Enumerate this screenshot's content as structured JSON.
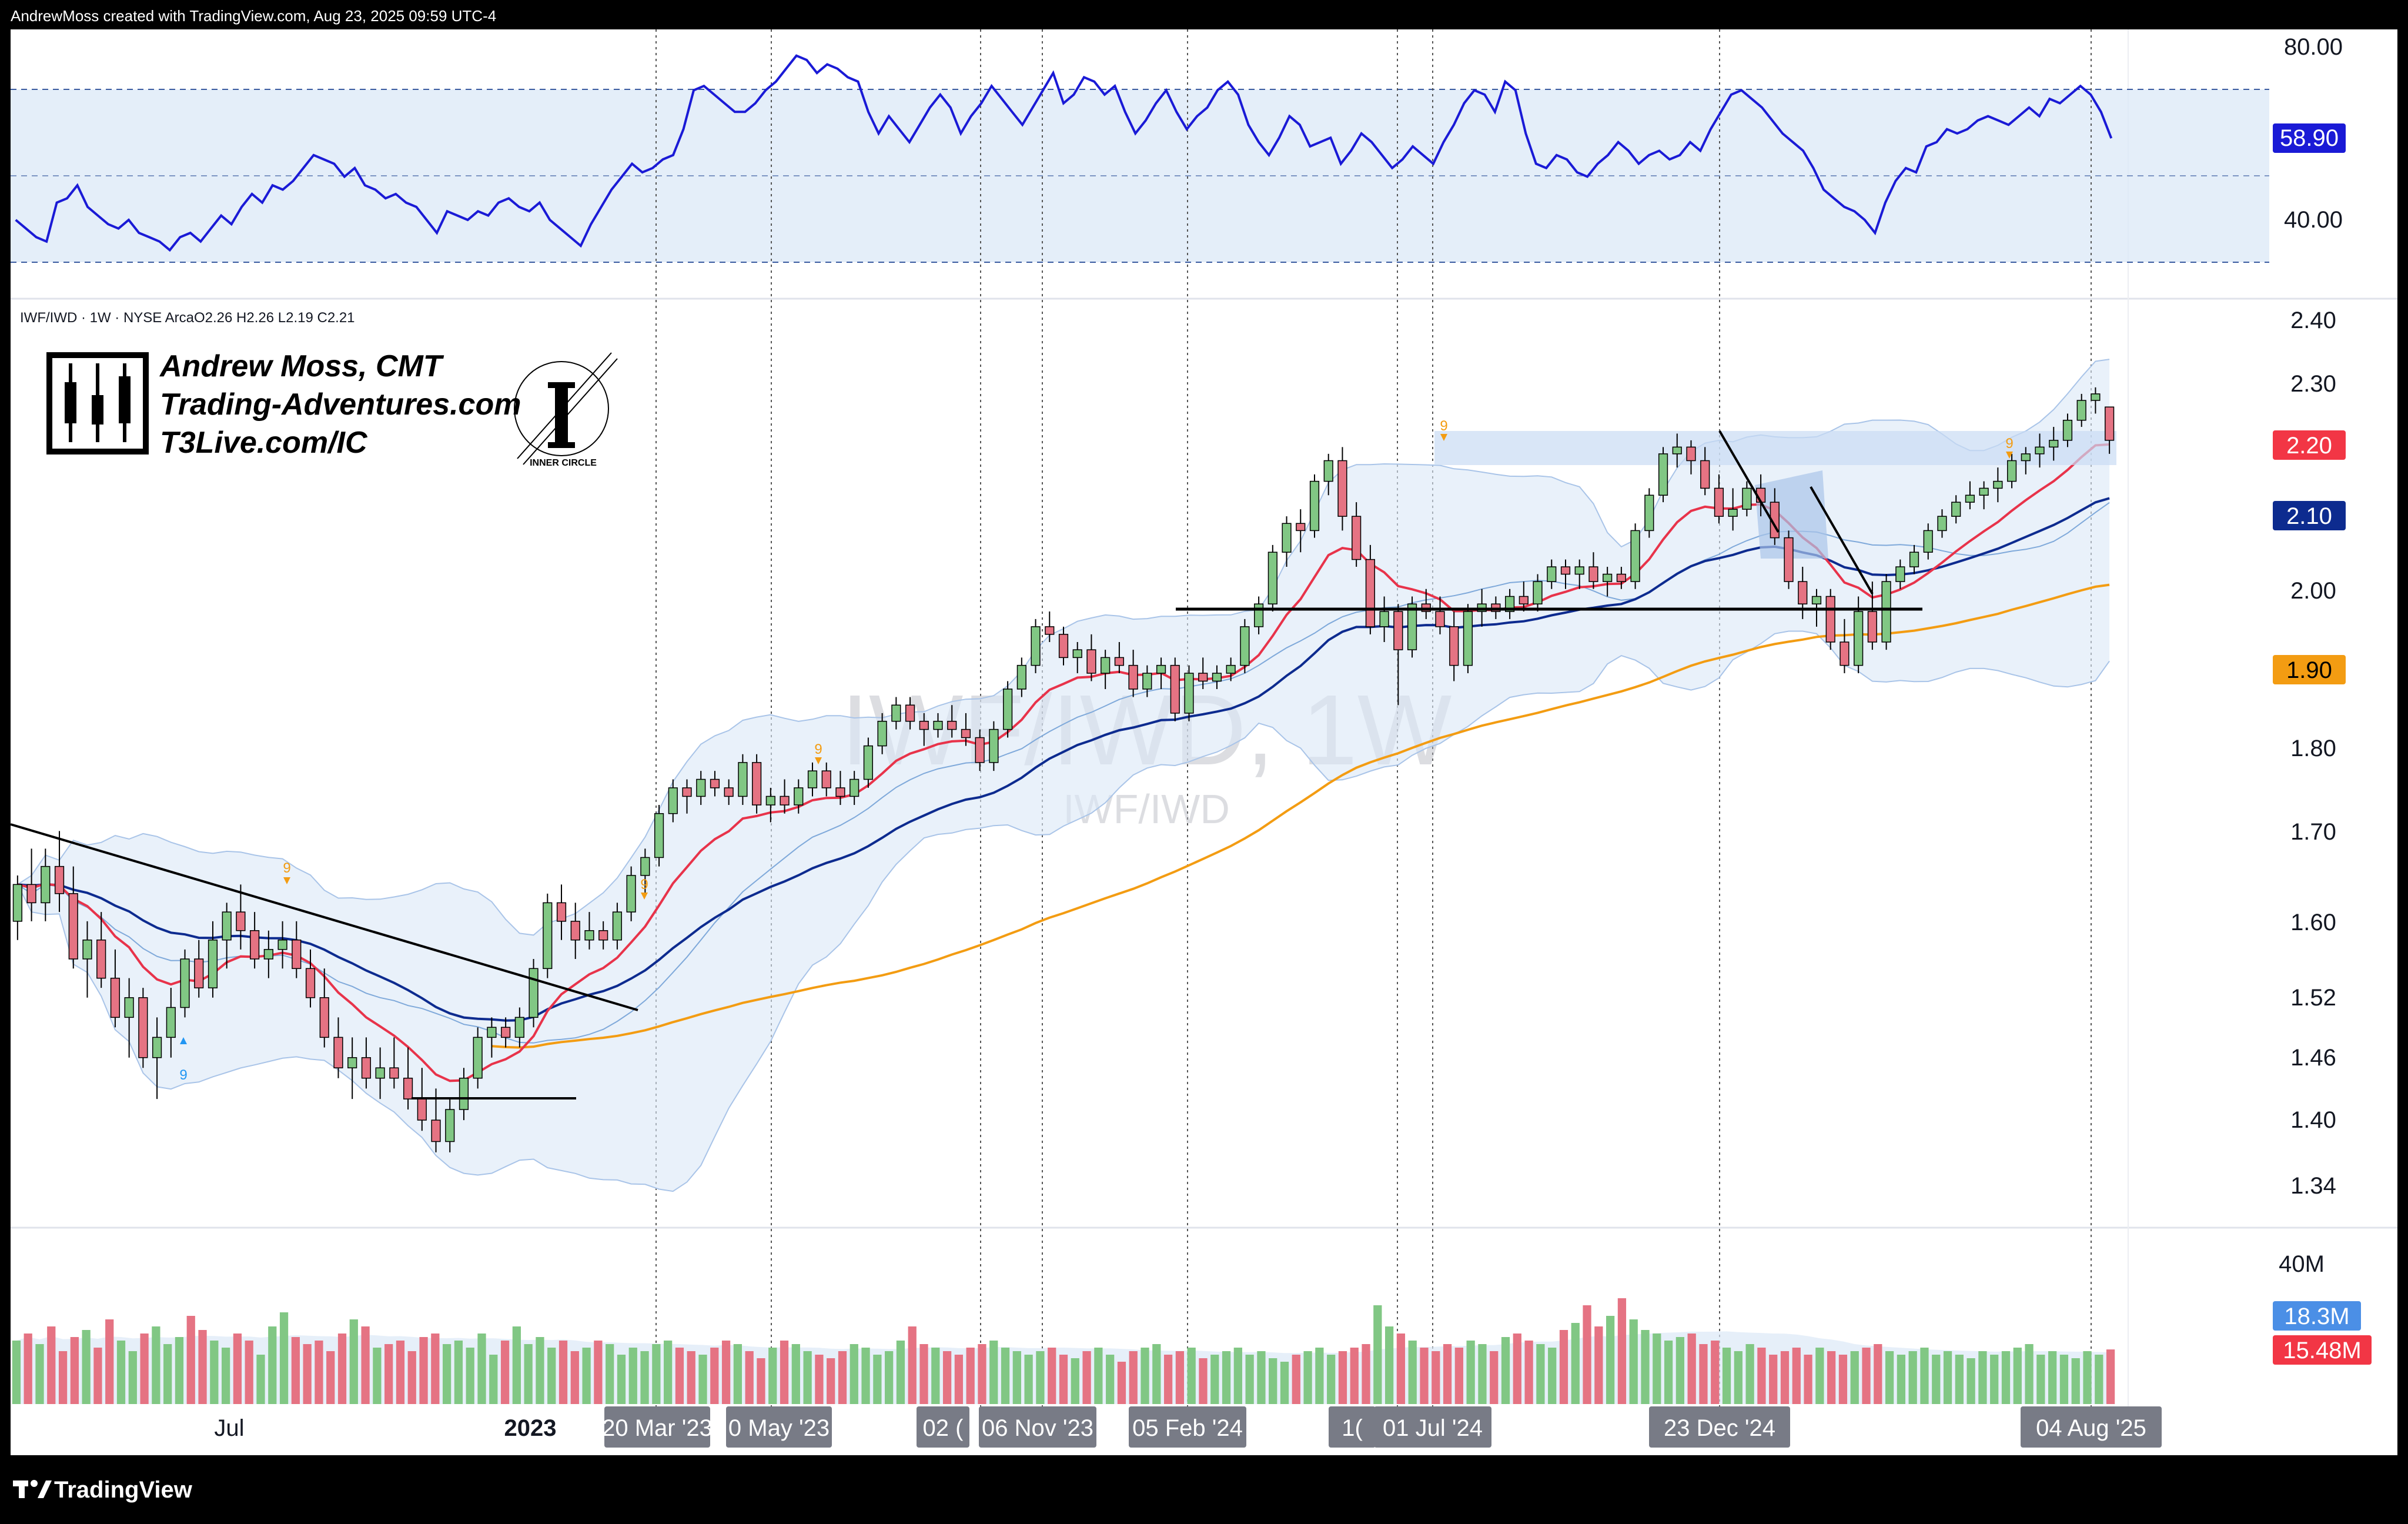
{
  "header": {
    "credit": "AndrewMoss created with TradingView.com, Aug 23, 2025 09:59 UTC-4"
  },
  "footer": {
    "brand": "TradingView"
  },
  "legend": {
    "symbol": "IWF/IWD · 1W · NYSE Arca",
    "ohlc": "O2.26  H2.26  L2.19  C2.21"
  },
  "branding": {
    "line1": "Andrew Moss, CMT",
    "line2": "Trading-Adventures.com",
    "line3": "T3Live.com/IC",
    "badge": "INNER CIRCLE"
  },
  "watermark": {
    "big": "IWF/IWD, 1W",
    "small": "IWF/IWD"
  },
  "colors": {
    "up": "#81c784",
    "down": "#e57383",
    "ema_fast": "#e8334a",
    "ema_mid": "#0d2b8f",
    "ema_slow": "#f39c12",
    "rsi": "#1a1ad6",
    "band": "#dbe8f7",
    "accent_blue": "#4b8fe6"
  },
  "chart_data": [
    {
      "type": "line",
      "name": "RSI",
      "y_axis_ticks": [
        "80.00",
        "40.00"
      ],
      "ylim": [
        28,
        84
      ],
      "levels": [
        70,
        50,
        30
      ],
      "current_label": "58.90",
      "values": [
        40,
        38,
        36,
        35,
        44,
        45,
        48,
        43,
        41,
        39,
        38,
        40,
        37,
        36,
        35,
        33,
        36,
        37,
        35,
        38,
        41,
        39,
        43,
        46,
        44,
        48,
        47,
        49,
        52,
        55,
        54,
        53,
        50,
        52,
        48,
        47,
        45,
        46,
        44,
        43,
        40,
        37,
        42,
        41,
        40,
        42,
        41,
        44,
        45,
        43,
        42,
        44,
        40,
        38,
        36,
        34,
        39,
        43,
        47,
        50,
        53,
        51,
        52,
        54,
        55,
        61,
        70,
        71,
        69,
        67,
        65,
        65,
        67,
        70,
        72,
        75,
        78,
        77,
        74,
        76,
        75,
        73,
        72,
        65,
        60,
        64,
        61,
        58,
        62,
        66,
        69,
        66,
        60,
        64,
        67,
        71,
        68,
        65,
        62,
        66,
        70,
        74,
        67,
        69,
        73,
        72,
        69,
        71,
        65,
        60,
        63,
        67,
        70,
        65,
        61,
        64,
        66,
        70,
        72,
        69,
        62,
        58,
        55,
        59,
        64,
        62,
        57,
        58,
        59,
        53,
        56,
        60,
        58,
        55,
        52,
        54,
        57,
        55,
        53,
        58,
        62,
        67,
        70,
        69,
        65,
        72,
        70,
        60,
        53,
        52,
        55,
        54,
        51,
        50,
        53,
        55,
        58,
        56,
        53,
        55,
        56,
        54,
        55,
        58,
        56,
        61,
        65,
        69,
        70,
        68,
        66,
        63,
        60,
        58,
        56,
        52,
        47,
        45,
        43,
        42,
        40,
        37,
        44,
        49,
        52,
        51,
        57,
        58,
        61,
        60,
        61,
        63,
        64,
        63,
        62,
        64,
        66,
        64,
        68,
        67,
        69,
        71,
        69,
        65,
        58.9
      ]
    },
    {
      "type": "candlestick",
      "name": "IWF/IWD",
      "scale": "log",
      "y_axis_ticks": [
        "2.40",
        "2.30",
        "2.20",
        "2.10",
        "2.00",
        "1.90",
        "1.80",
        "1.70",
        "1.60",
        "1.52",
        "1.46",
        "1.40",
        "1.34"
      ],
      "price_labels": [
        {
          "value": "2.20",
          "color": "#f23645"
        },
        {
          "value": "2.10",
          "color": "#0d2b8f"
        },
        {
          "value": "1.90",
          "color": "#f39c12"
        }
      ],
      "annotations": [
        "9",
        "9",
        "9",
        "9",
        "9",
        "9"
      ],
      "ohlc": [
        [
          1.6,
          1.65,
          1.58,
          1.64
        ],
        [
          1.64,
          1.68,
          1.6,
          1.62
        ],
        [
          1.62,
          1.68,
          1.6,
          1.66
        ],
        [
          1.66,
          1.7,
          1.61,
          1.63
        ],
        [
          1.63,
          1.66,
          1.55,
          1.56
        ],
        [
          1.56,
          1.6,
          1.52,
          1.58
        ],
        [
          1.58,
          1.61,
          1.53,
          1.54
        ],
        [
          1.54,
          1.57,
          1.49,
          1.5
        ],
        [
          1.5,
          1.54,
          1.46,
          1.52
        ],
        [
          1.52,
          1.53,
          1.45,
          1.46
        ],
        [
          1.46,
          1.5,
          1.42,
          1.48
        ],
        [
          1.48,
          1.53,
          1.46,
          1.51
        ],
        [
          1.51,
          1.57,
          1.5,
          1.56
        ],
        [
          1.56,
          1.58,
          1.52,
          1.53
        ],
        [
          1.53,
          1.6,
          1.52,
          1.58
        ],
        [
          1.58,
          1.62,
          1.55,
          1.61
        ],
        [
          1.61,
          1.64,
          1.57,
          1.59
        ],
        [
          1.59,
          1.61,
          1.55,
          1.56
        ],
        [
          1.56,
          1.59,
          1.54,
          1.57
        ],
        [
          1.57,
          1.6,
          1.55,
          1.58
        ],
        [
          1.58,
          1.6,
          1.54,
          1.55
        ],
        [
          1.55,
          1.57,
          1.51,
          1.52
        ],
        [
          1.52,
          1.55,
          1.47,
          1.48
        ],
        [
          1.48,
          1.5,
          1.44,
          1.45
        ],
        [
          1.45,
          1.48,
          1.42,
          1.46
        ],
        [
          1.46,
          1.48,
          1.43,
          1.44
        ],
        [
          1.44,
          1.47,
          1.42,
          1.45
        ],
        [
          1.45,
          1.48,
          1.43,
          1.44
        ],
        [
          1.44,
          1.47,
          1.41,
          1.42
        ],
        [
          1.42,
          1.45,
          1.39,
          1.4
        ],
        [
          1.4,
          1.43,
          1.37,
          1.38
        ],
        [
          1.38,
          1.42,
          1.37,
          1.41
        ],
        [
          1.41,
          1.45,
          1.4,
          1.44
        ],
        [
          1.44,
          1.49,
          1.43,
          1.48
        ],
        [
          1.48,
          1.5,
          1.46,
          1.49
        ],
        [
          1.49,
          1.5,
          1.47,
          1.48
        ],
        [
          1.48,
          1.51,
          1.47,
          1.5
        ],
        [
          1.5,
          1.56,
          1.49,
          1.55
        ],
        [
          1.55,
          1.63,
          1.54,
          1.62
        ],
        [
          1.62,
          1.64,
          1.58,
          1.6
        ],
        [
          1.6,
          1.62,
          1.56,
          1.58
        ],
        [
          1.58,
          1.61,
          1.57,
          1.59
        ],
        [
          1.59,
          1.6,
          1.57,
          1.58
        ],
        [
          1.58,
          1.62,
          1.57,
          1.61
        ],
        [
          1.61,
          1.66,
          1.6,
          1.65
        ],
        [
          1.65,
          1.68,
          1.63,
          1.67
        ],
        [
          1.67,
          1.73,
          1.66,
          1.72
        ],
        [
          1.72,
          1.76,
          1.71,
          1.75
        ],
        [
          1.75,
          1.76,
          1.72,
          1.74
        ],
        [
          1.74,
          1.77,
          1.73,
          1.76
        ],
        [
          1.76,
          1.77,
          1.74,
          1.75
        ],
        [
          1.75,
          1.76,
          1.73,
          1.74
        ],
        [
          1.74,
          1.79,
          1.73,
          1.78
        ],
        [
          1.78,
          1.79,
          1.72,
          1.73
        ],
        [
          1.73,
          1.75,
          1.71,
          1.74
        ],
        [
          1.74,
          1.76,
          1.72,
          1.73
        ],
        [
          1.73,
          1.76,
          1.72,
          1.75
        ],
        [
          1.75,
          1.78,
          1.74,
          1.77
        ],
        [
          1.77,
          1.78,
          1.74,
          1.75
        ],
        [
          1.75,
          1.77,
          1.73,
          1.74
        ],
        [
          1.74,
          1.77,
          1.73,
          1.76
        ],
        [
          1.76,
          1.81,
          1.75,
          1.8
        ],
        [
          1.8,
          1.84,
          1.79,
          1.83
        ],
        [
          1.83,
          1.86,
          1.82,
          1.85
        ],
        [
          1.85,
          1.86,
          1.82,
          1.83
        ],
        [
          1.83,
          1.84,
          1.8,
          1.82
        ],
        [
          1.82,
          1.84,
          1.81,
          1.83
        ],
        [
          1.83,
          1.85,
          1.81,
          1.82
        ],
        [
          1.82,
          1.84,
          1.8,
          1.81
        ],
        [
          1.81,
          1.82,
          1.77,
          1.78
        ],
        [
          1.78,
          1.83,
          1.77,
          1.82
        ],
        [
          1.82,
          1.88,
          1.81,
          1.87
        ],
        [
          1.87,
          1.91,
          1.86,
          1.9
        ],
        [
          1.9,
          1.96,
          1.89,
          1.95
        ],
        [
          1.95,
          1.97,
          1.93,
          1.94
        ],
        [
          1.94,
          1.95,
          1.9,
          1.91
        ],
        [
          1.91,
          1.93,
          1.89,
          1.92
        ],
        [
          1.92,
          1.94,
          1.88,
          1.89
        ],
        [
          1.89,
          1.92,
          1.87,
          1.91
        ],
        [
          1.91,
          1.93,
          1.89,
          1.9
        ],
        [
          1.9,
          1.92,
          1.86,
          1.87
        ],
        [
          1.87,
          1.9,
          1.86,
          1.89
        ],
        [
          1.89,
          1.91,
          1.87,
          1.9
        ],
        [
          1.9,
          1.91,
          1.83,
          1.84
        ],
        [
          1.84,
          1.9,
          1.83,
          1.89
        ],
        [
          1.89,
          1.91,
          1.87,
          1.88
        ],
        [
          1.88,
          1.9,
          1.87,
          1.89
        ],
        [
          1.89,
          1.91,
          1.88,
          1.9
        ],
        [
          1.9,
          1.96,
          1.89,
          1.95
        ],
        [
          1.95,
          1.99,
          1.94,
          1.98
        ],
        [
          1.98,
          2.06,
          1.97,
          2.05
        ],
        [
          2.05,
          2.1,
          2.03,
          2.09
        ],
        [
          2.09,
          2.11,
          2.05,
          2.08
        ],
        [
          2.08,
          2.16,
          2.07,
          2.15
        ],
        [
          2.15,
          2.19,
          2.13,
          2.18
        ],
        [
          2.18,
          2.2,
          2.08,
          2.1
        ],
        [
          2.1,
          2.12,
          2.03,
          2.04
        ],
        [
          2.04,
          2.06,
          1.94,
          1.95
        ],
        [
          1.95,
          1.99,
          1.93,
          1.97
        ],
        [
          1.97,
          1.98,
          1.85,
          1.92
        ],
        [
          1.92,
          1.99,
          1.91,
          1.98
        ],
        [
          1.98,
          2.0,
          1.96,
          1.97
        ],
        [
          1.97,
          1.99,
          1.94,
          1.95
        ],
        [
          1.95,
          1.97,
          1.88,
          1.9
        ],
        [
          1.9,
          1.98,
          1.89,
          1.97
        ],
        [
          1.97,
          2.0,
          1.95,
          1.98
        ],
        [
          1.98,
          1.99,
          1.96,
          1.97
        ],
        [
          1.97,
          2.0,
          1.96,
          1.99
        ],
        [
          1.99,
          2.01,
          1.97,
          1.98
        ],
        [
          1.98,
          2.02,
          1.97,
          2.01
        ],
        [
          2.01,
          2.04,
          2.0,
          2.03
        ],
        [
          2.03,
          2.04,
          2.0,
          2.02
        ],
        [
          2.02,
          2.04,
          2.0,
          2.03
        ],
        [
          2.03,
          2.05,
          2.0,
          2.01
        ],
        [
          2.01,
          2.03,
          1.99,
          2.02
        ],
        [
          2.02,
          2.03,
          2.0,
          2.01
        ],
        [
          2.01,
          2.09,
          2.0,
          2.08
        ],
        [
          2.08,
          2.14,
          2.07,
          2.13
        ],
        [
          2.13,
          2.2,
          2.12,
          2.19
        ],
        [
          2.19,
          2.22,
          2.17,
          2.2
        ],
        [
          2.2,
          2.21,
          2.16,
          2.18
        ],
        [
          2.18,
          2.2,
          2.13,
          2.14
        ],
        [
          2.14,
          2.16,
          2.09,
          2.1
        ],
        [
          2.1,
          2.14,
          2.08,
          2.11
        ],
        [
          2.11,
          2.15,
          2.1,
          2.14
        ],
        [
          2.14,
          2.16,
          2.1,
          2.12
        ],
        [
          2.12,
          2.14,
          2.06,
          2.07
        ],
        [
          2.07,
          2.08,
          2.0,
          2.01
        ],
        [
          2.01,
          2.03,
          1.96,
          1.98
        ],
        [
          1.98,
          2.0,
          1.95,
          1.99
        ],
        [
          1.99,
          2.0,
          1.92,
          1.93
        ],
        [
          1.93,
          1.96,
          1.89,
          1.9
        ],
        [
          1.9,
          1.99,
          1.89,
          1.97
        ],
        [
          1.97,
          2.01,
          1.92,
          1.93
        ],
        [
          1.93,
          2.02,
          1.92,
          2.01
        ],
        [
          2.01,
          2.04,
          2.0,
          2.03
        ],
        [
          2.03,
          2.06,
          2.02,
          2.05
        ],
        [
          2.05,
          2.09,
          2.04,
          2.08
        ],
        [
          2.08,
          2.11,
          2.07,
          2.1
        ],
        [
          2.1,
          2.13,
          2.09,
          2.12
        ],
        [
          2.12,
          2.15,
          2.11,
          2.13
        ],
        [
          2.13,
          2.15,
          2.11,
          2.14
        ],
        [
          2.14,
          2.17,
          2.12,
          2.15
        ],
        [
          2.15,
          2.19,
          2.14,
          2.18
        ],
        [
          2.18,
          2.2,
          2.16,
          2.19
        ],
        [
          2.19,
          2.22,
          2.17,
          2.2
        ],
        [
          2.2,
          2.23,
          2.18,
          2.21
        ],
        [
          2.21,
          2.25,
          2.2,
          2.24
        ],
        [
          2.24,
          2.28,
          2.23,
          2.27
        ],
        [
          2.27,
          2.29,
          2.25,
          2.28
        ],
        [
          2.26,
          2.26,
          2.19,
          2.21
        ]
      ]
    },
    {
      "type": "bar",
      "name": "Volume",
      "y_axis_ticks": [
        "40M"
      ],
      "ylim": [
        0,
        46
      ],
      "current_labels": [
        {
          "value": "18.3M",
          "color": "#4b8fe6"
        },
        {
          "value": "15.48M",
          "color": "#f23645"
        }
      ],
      "values": [
        18,
        20,
        17,
        22,
        15,
        19,
        21,
        16,
        24,
        18,
        15,
        20,
        22,
        17,
        19,
        25,
        21,
        18,
        16,
        20,
        18,
        14,
        22,
        26,
        19,
        17,
        18,
        15,
        20,
        24,
        22,
        16,
        17,
        18,
        15,
        19,
        20,
        17,
        18,
        16,
        20,
        14,
        18,
        22,
        17,
        19,
        16,
        18,
        15,
        16,
        18,
        17,
        14,
        16,
        15,
        17,
        18,
        16,
        15,
        14,
        16,
        18,
        17,
        15,
        13,
        16,
        18,
        17,
        15,
        14,
        13,
        15,
        17,
        16,
        14,
        15,
        18,
        22,
        17,
        16,
        15,
        14,
        16,
        17,
        18,
        16,
        15,
        14,
        15,
        16,
        14,
        13,
        15,
        16,
        14,
        12,
        15,
        16,
        17,
        14,
        15,
        16,
        13,
        14,
        15,
        16,
        14,
        15,
        13,
        12,
        14,
        15,
        16,
        14,
        15,
        16,
        17,
        28,
        22,
        20,
        18,
        16,
        15,
        17,
        16,
        18,
        17,
        15,
        19,
        20,
        18,
        17,
        16,
        21,
        23,
        28,
        22,
        25,
        30,
        24,
        21,
        20,
        18,
        19,
        20,
        17,
        18,
        16,
        15,
        17,
        16,
        14,
        15,
        16,
        14,
        16,
        15,
        14,
        15,
        16,
        17,
        15,
        14,
        15,
        16,
        14,
        15,
        14,
        13,
        15,
        14,
        15,
        16,
        17,
        14,
        15,
        14,
        13,
        15,
        14,
        15.48
      ]
    }
  ],
  "x_axis": {
    "labels": [
      {
        "text": "Jul",
        "bold": false
      },
      {
        "text": "2023",
        "bold": true
      }
    ],
    "time_markers": [
      "20 Mar '23",
      "0 May '23",
      "02 (",
      "06 Nov '23",
      "05 Feb '24",
      "1(",
      "01 Jul '24",
      "23 Dec '24",
      "04 Aug '25"
    ]
  }
}
